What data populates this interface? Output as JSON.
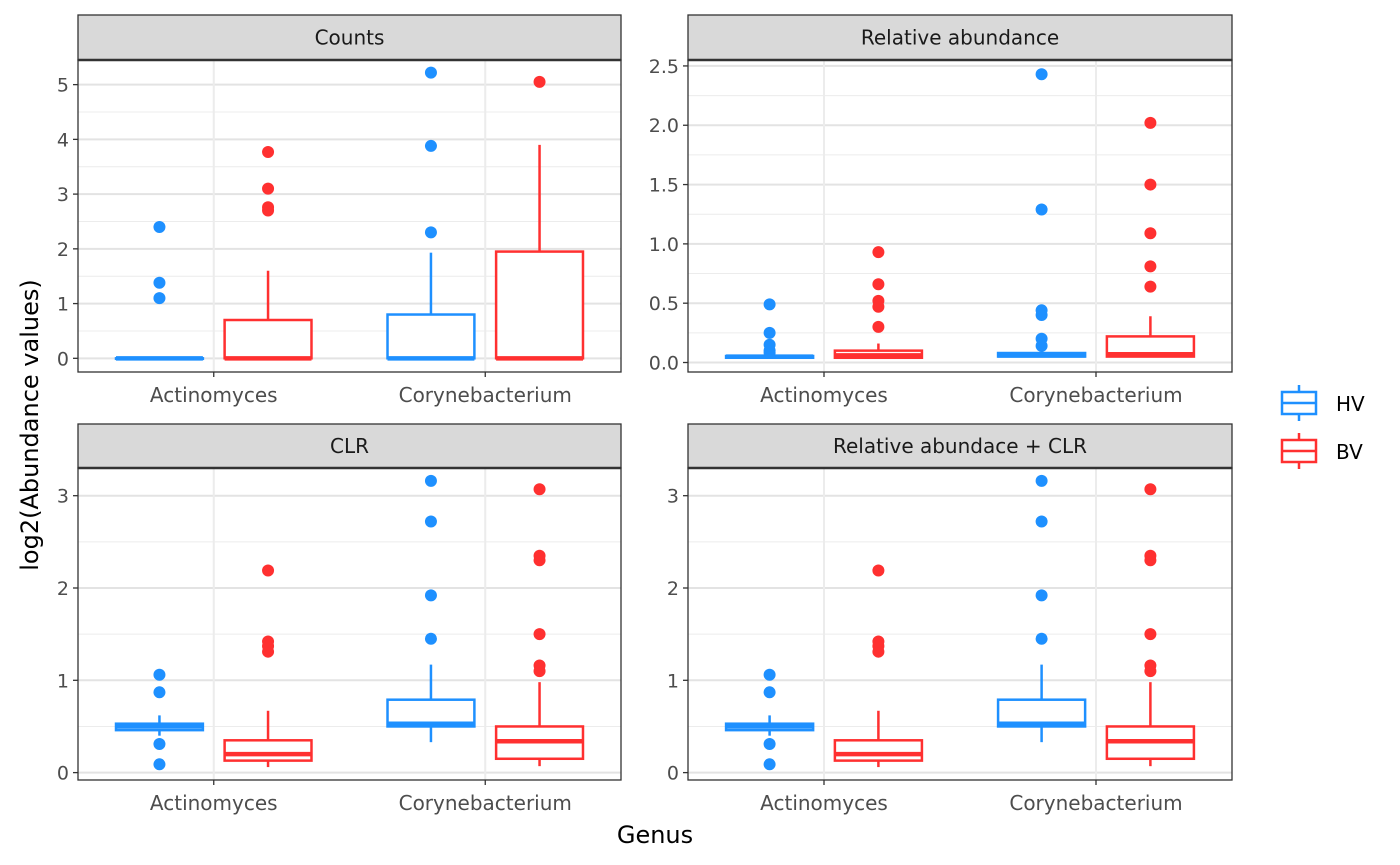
{
  "figure": {
    "ylabel": "log2(Abundance values)",
    "xlabel": "Genus"
  },
  "legend": {
    "items": [
      {
        "label": "HV",
        "color": "#1E90FF"
      },
      {
        "label": "BV",
        "color": "#FF3030"
      }
    ]
  },
  "chart_data": [
    {
      "type": "box",
      "title": "Counts",
      "categories": [
        "Actinomyces",
        "Corynebacterium"
      ],
      "ylim": [
        -0.25,
        5.45
      ],
      "yticks": [
        0,
        1,
        2,
        3,
        4,
        5
      ],
      "ytick_labels": [
        "0",
        "1",
        "2",
        "3",
        "4",
        "5"
      ],
      "series": [
        {
          "name": "HV",
          "boxes": [
            {
              "q1": 0,
              "median": 0,
              "q3": 0,
              "whisker_low": 0,
              "whisker_high": 0,
              "outliers": [
                1.1,
                1.38,
                2.4
              ]
            },
            {
              "q1": 0,
              "median": 0,
              "q3": 0.8,
              "whisker_low": 0,
              "whisker_high": 1.93,
              "outliers": [
                2.3,
                3.88,
                5.22
              ]
            }
          ]
        },
        {
          "name": "BV",
          "boxes": [
            {
              "q1": 0,
              "median": 0,
              "q3": 0.7,
              "whisker_low": 0,
              "whisker_high": 1.6,
              "outliers": [
                2.7,
                2.76,
                3.1,
                3.77
              ]
            },
            {
              "q1": 0,
              "median": 0,
              "q3": 1.95,
              "whisker_low": 0,
              "whisker_high": 3.9,
              "outliers": [
                5.05
              ]
            }
          ]
        }
      ]
    },
    {
      "type": "box",
      "title": "Relative abundance",
      "categories": [
        "Actinomyces",
        "Corynebacterium"
      ],
      "ylim": [
        -0.08,
        2.55
      ],
      "yticks": [
        0,
        0.5,
        1.0,
        1.5,
        2.0,
        2.5
      ],
      "ytick_labels": [
        "0.0",
        "0.5",
        "1.0",
        "1.5",
        "2.0",
        "2.5"
      ],
      "series": [
        {
          "name": "HV",
          "boxes": [
            {
              "q1": 0.04,
              "median": 0.05,
              "q3": 0.055,
              "whisker_low": 0.04,
              "whisker_high": 0.06,
              "outliers": [
                0.08,
                0.1,
                0.15,
                0.25,
                0.49
              ]
            },
            {
              "q1": 0.05,
              "median": 0.06,
              "q3": 0.08,
              "whisker_low": 0.05,
              "whisker_high": 0.1,
              "outliers": [
                0.14,
                0.2,
                0.4,
                0.44,
                1.29,
                2.43
              ]
            }
          ]
        },
        {
          "name": "BV",
          "boxes": [
            {
              "q1": 0.04,
              "median": 0.06,
              "q3": 0.1,
              "whisker_low": 0.04,
              "whisker_high": 0.16,
              "outliers": [
                0.3,
                0.47,
                0.52,
                0.66,
                0.93
              ]
            },
            {
              "q1": 0.05,
              "median": 0.07,
              "q3": 0.22,
              "whisker_low": 0.05,
              "whisker_high": 0.39,
              "outliers": [
                0.64,
                0.81,
                1.09,
                1.5,
                2.02
              ]
            }
          ]
        }
      ]
    },
    {
      "type": "box",
      "title": "CLR",
      "categories": [
        "Actinomyces",
        "Corynebacterium"
      ],
      "ylim": [
        -0.08,
        3.3
      ],
      "yticks": [
        0,
        1,
        2,
        3
      ],
      "ytick_labels": [
        "0",
        "1",
        "2",
        "3"
      ],
      "series": [
        {
          "name": "HV",
          "boxes": [
            {
              "q1": 0.46,
              "median": 0.5,
              "q3": 0.53,
              "whisker_low": 0.4,
              "whisker_high": 0.62,
              "outliers": [
                0.09,
                0.31,
                0.87,
                1.06
              ]
            },
            {
              "q1": 0.5,
              "median": 0.53,
              "q3": 0.79,
              "whisker_low": 0.33,
              "whisker_high": 1.17,
              "outliers": [
                1.45,
                1.92,
                2.72,
                3.16
              ]
            }
          ]
        },
        {
          "name": "BV",
          "boxes": [
            {
              "q1": 0.13,
              "median": 0.2,
              "q3": 0.35,
              "whisker_low": 0.06,
              "whisker_high": 0.67,
              "outliers": [
                1.31,
                1.37,
                1.42,
                2.19
              ]
            },
            {
              "q1": 0.15,
              "median": 0.34,
              "q3": 0.5,
              "whisker_low": 0.07,
              "whisker_high": 0.98,
              "outliers": [
                1.1,
                1.16,
                1.5,
                2.3,
                2.35,
                3.07
              ]
            }
          ]
        }
      ]
    },
    {
      "type": "box",
      "title": "Relative abundace + CLR",
      "categories": [
        "Actinomyces",
        "Corynebacterium"
      ],
      "ylim": [
        -0.08,
        3.3
      ],
      "yticks": [
        0,
        1,
        2,
        3
      ],
      "ytick_labels": [
        "0",
        "1",
        "2",
        "3"
      ],
      "series": [
        {
          "name": "HV",
          "boxes": [
            {
              "q1": 0.46,
              "median": 0.5,
              "q3": 0.53,
              "whisker_low": 0.4,
              "whisker_high": 0.62,
              "outliers": [
                0.09,
                0.31,
                0.87,
                1.06
              ]
            },
            {
              "q1": 0.5,
              "median": 0.53,
              "q3": 0.79,
              "whisker_low": 0.33,
              "whisker_high": 1.17,
              "outliers": [
                1.45,
                1.92,
                2.72,
                3.16
              ]
            }
          ]
        },
        {
          "name": "BV",
          "boxes": [
            {
              "q1": 0.13,
              "median": 0.2,
              "q3": 0.35,
              "whisker_low": 0.06,
              "whisker_high": 0.67,
              "outliers": [
                1.31,
                1.37,
                1.42,
                2.19
              ]
            },
            {
              "q1": 0.15,
              "median": 0.34,
              "q3": 0.5,
              "whisker_low": 0.07,
              "whisker_high": 0.98,
              "outliers": [
                1.1,
                1.16,
                1.5,
                2.3,
                2.35,
                3.07
              ]
            }
          ]
        }
      ]
    }
  ]
}
